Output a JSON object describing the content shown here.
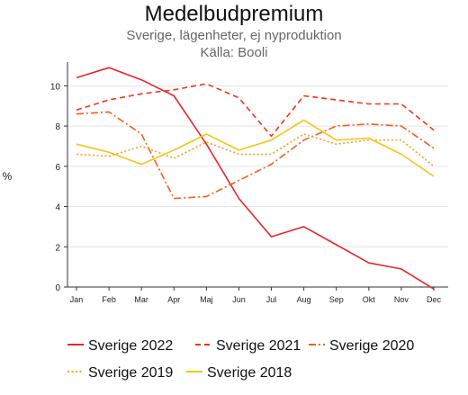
{
  "chart_data": {
    "type": "line",
    "title": "Medelbudpremium",
    "subtitle": "Sverige, lägenheter, ej nyproduktion",
    "source": "Källa: Booli",
    "ylabel": "%",
    "xlabel": "",
    "categories": [
      "Jan",
      "Feb",
      "Mar",
      "Apr",
      "Maj",
      "Jun",
      "Jul",
      "Aug",
      "Sep",
      "Okt",
      "Nov",
      "Dec"
    ],
    "ylim": [
      0,
      11
    ],
    "yticks": [
      0,
      2,
      4,
      6,
      8,
      10
    ],
    "grid": true,
    "legend_position": "bottom",
    "series": [
      {
        "name": "Sverige 2022",
        "color": "#e8252a",
        "dash": "solid",
        "values": [
          10.4,
          10.9,
          10.3,
          9.5,
          7.1,
          4.4,
          2.5,
          3.0,
          2.1,
          1.2,
          0.9,
          -0.1
        ]
      },
      {
        "name": "Sverige 2021",
        "color": "#f0331c",
        "dash": "dash",
        "values": [
          8.8,
          9.3,
          9.6,
          9.8,
          10.1,
          9.4,
          7.5,
          9.5,
          9.3,
          9.1,
          9.1,
          7.8
        ]
      },
      {
        "name": "Sverige 2020",
        "color": "#f25f1c",
        "dash": "dashdot",
        "values": [
          8.6,
          8.7,
          7.6,
          4.4,
          4.5,
          5.3,
          6.1,
          7.3,
          8.0,
          8.1,
          8.0,
          6.9
        ]
      },
      {
        "name": "Sverige 2019",
        "color": "#f5a11c",
        "dash": "dot",
        "values": [
          6.6,
          6.5,
          7.0,
          6.4,
          7.2,
          6.6,
          6.6,
          7.6,
          7.1,
          7.3,
          7.3,
          6.0
        ]
      },
      {
        "name": "Sverige 2018",
        "color": "#f5c516",
        "dash": "solid",
        "values": [
          7.1,
          6.7,
          6.1,
          6.8,
          7.6,
          6.8,
          7.3,
          8.3,
          7.3,
          7.4,
          6.6,
          5.5
        ]
      }
    ]
  }
}
